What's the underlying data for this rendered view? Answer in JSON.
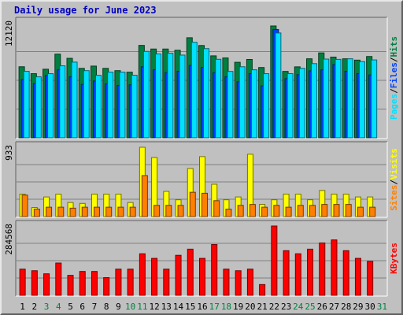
{
  "title": "Daily usage for June 2023",
  "colors": {
    "background": "#c0c0c0",
    "hits": "#008040",
    "files": "#0040ff",
    "pages": "#00e0ff",
    "visits": "#ffff00",
    "sites": "#ff8000",
    "kbytes": "#ff0000",
    "title": "#0000c0"
  },
  "chart_data": [
    {
      "type": "bar",
      "ylabel_parts": [
        "Pages",
        "Files",
        "Hits"
      ],
      "ymax_label": "12120",
      "ylim": [
        0,
        12120
      ],
      "grid": true,
      "categories": [
        "1",
        "2",
        "3",
        "4",
        "5",
        "6",
        "7",
        "8",
        "9",
        "10",
        "11",
        "12",
        "13",
        "14",
        "15",
        "16",
        "17",
        "18",
        "19",
        "20",
        "21",
        "22",
        "23",
        "24",
        "25",
        "26",
        "27",
        "28",
        "29",
        "30"
      ],
      "weekend_days": [
        "3",
        "4",
        "10",
        "11",
        "17",
        "18",
        "24",
        "25",
        "31"
      ],
      "series": [
        {
          "name": "Hits",
          "values": [
            7490,
            6760,
            7230,
            8820,
            8380,
            7320,
            7560,
            7320,
            7080,
            6920,
            9740,
            9360,
            9360,
            9230,
            10550,
            9730,
            8640,
            8420,
            7960,
            8260,
            7410,
            11790,
            7000,
            7480,
            8330,
            8950,
            8510,
            8330,
            8190,
            8570
          ]
        },
        {
          "name": "Files",
          "values": [
            6140,
            5710,
            6570,
            7170,
            6440,
            5630,
            5990,
            5670,
            5510,
            5590,
            7490,
            7170,
            6880,
            7010,
            7630,
            7410,
            6880,
            6440,
            5900,
            6770,
            5470,
            11420,
            6240,
            6660,
            7060,
            7160,
            7730,
            7010,
            6770,
            6630
          ]
        },
        {
          "name": "Pages",
          "values": [
            7010,
            6430,
            6760,
            7590,
            7980,
            7080,
            6590,
            6920,
            6920,
            6600,
            9110,
            8840,
            8920,
            8720,
            10070,
            9400,
            8280,
            7000,
            7490,
            7170,
            6760,
            11050,
            6770,
            7320,
            7820,
            8300,
            8270,
            8330,
            8030,
            8210
          ]
        }
      ]
    },
    {
      "type": "bar",
      "ylabel_parts": [
        "Sites",
        "Visits"
      ],
      "ymax_label": "933",
      "ylim": [
        0,
        933
      ],
      "grid": true,
      "categories": [
        "1",
        "2",
        "3",
        "4",
        "5",
        "6",
        "7",
        "8",
        "9",
        "10",
        "11",
        "12",
        "13",
        "14",
        "15",
        "16",
        "17",
        "18",
        "19",
        "20",
        "21",
        "22",
        "23",
        "24",
        "25",
        "26",
        "27",
        "28",
        "29",
        "30"
      ],
      "series": [
        {
          "name": "Visits",
          "values": [
            302,
            121,
            264,
            302,
            189,
            177,
            302,
            302,
            302,
            189,
            933,
            795,
            339,
            226,
            647,
            807,
            435,
            226,
            264,
            839,
            163,
            226,
            302,
            302,
            226,
            351,
            302,
            302,
            264,
            264
          ]
        },
        {
          "name": "Sites",
          "values": [
            289,
            100,
            126,
            126,
            113,
            126,
            126,
            126,
            126,
            126,
            552,
            151,
            151,
            151,
            327,
            314,
            214,
            100,
            151,
            163,
            126,
            151,
            126,
            151,
            151,
            163,
            163,
            163,
            126,
            126
          ]
        }
      ]
    },
    {
      "type": "bar",
      "ylabel_parts": [
        "KBytes"
      ],
      "ymax_label": "284568",
      "ylim": [
        0,
        284568
      ],
      "grid": true,
      "categories": [
        "1",
        "2",
        "3",
        "4",
        "5",
        "6",
        "7",
        "8",
        "9",
        "10",
        "11",
        "12",
        "13",
        "14",
        "15",
        "16",
        "17",
        "18",
        "19",
        "20",
        "21",
        "22",
        "23",
        "24",
        "25",
        "26",
        "27",
        "28",
        "29",
        "30"
      ],
      "series": [
        {
          "name": "KBytes",
          "values": [
            107500,
            101000,
            88300,
            132500,
            82000,
            98000,
            98000,
            72600,
            107500,
            107500,
            170600,
            151700,
            107500,
            164300,
            189600,
            151700,
            208500,
            107500,
            101000,
            107500,
            44200,
            284600,
            183300,
            170600,
            189600,
            215000,
            227500,
            183300,
            151700,
            139100
          ]
        }
      ]
    }
  ],
  "x_labels": [
    "1",
    "2",
    "3",
    "4",
    "5",
    "6",
    "7",
    "8",
    "9",
    "10",
    "11",
    "12",
    "13",
    "14",
    "15",
    "16",
    "17",
    "18",
    "19",
    "20",
    "21",
    "22",
    "23",
    "24",
    "25",
    "26",
    "27",
    "28",
    "29",
    "30",
    "31"
  ]
}
